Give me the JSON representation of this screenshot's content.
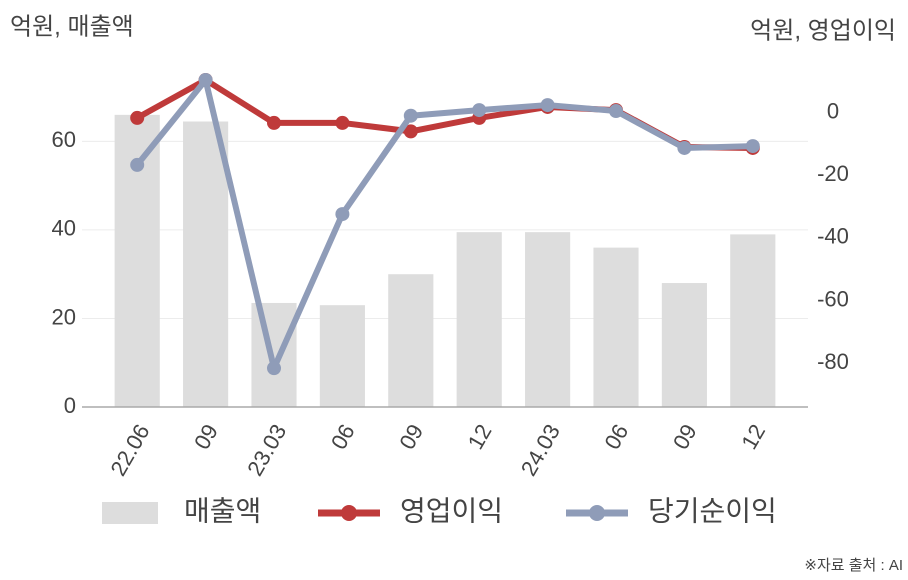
{
  "chart_data": {
    "type": "bar",
    "y_label": "억원, 매출액",
    "y2_label": "억원, 영업이익",
    "source": "※자료 출처 : AI",
    "categories": [
      "22.06",
      "09",
      "23.03",
      "06",
      "09",
      "12",
      "24.03",
      "06",
      "09",
      "12"
    ],
    "series": [
      {
        "name": "매출액",
        "type": "bar",
        "color": "#dddddd",
        "values": [
          66,
          64.5,
          23.5,
          23,
          30,
          39.5,
          39.5,
          36,
          28,
          39
        ]
      },
      {
        "name": "영업이익",
        "type": "line",
        "axis": "y2",
        "color": "#bf3a3a",
        "values": [
          -1.7,
          10.4,
          -3.3,
          -3.3,
          -6,
          -1.7,
          1.8,
          0.8,
          -11,
          -11.3
        ]
      },
      {
        "name": "당기순이익",
        "type": "line",
        "axis": "y2",
        "color": "#8f9cb8",
        "values": [
          -16.7,
          10.4,
          -81.6,
          -32.4,
          -1,
          0.8,
          2.4,
          0.5,
          -11.3,
          -10.7
        ]
      }
    ],
    "ylim": [
      0,
      75
    ],
    "yticks": [
      0,
      20,
      40,
      60
    ],
    "y2lim": [
      -94,
      12
    ],
    "y2ticks": [
      0,
      -20,
      -40,
      -60,
      -80
    ],
    "grid": true
  }
}
